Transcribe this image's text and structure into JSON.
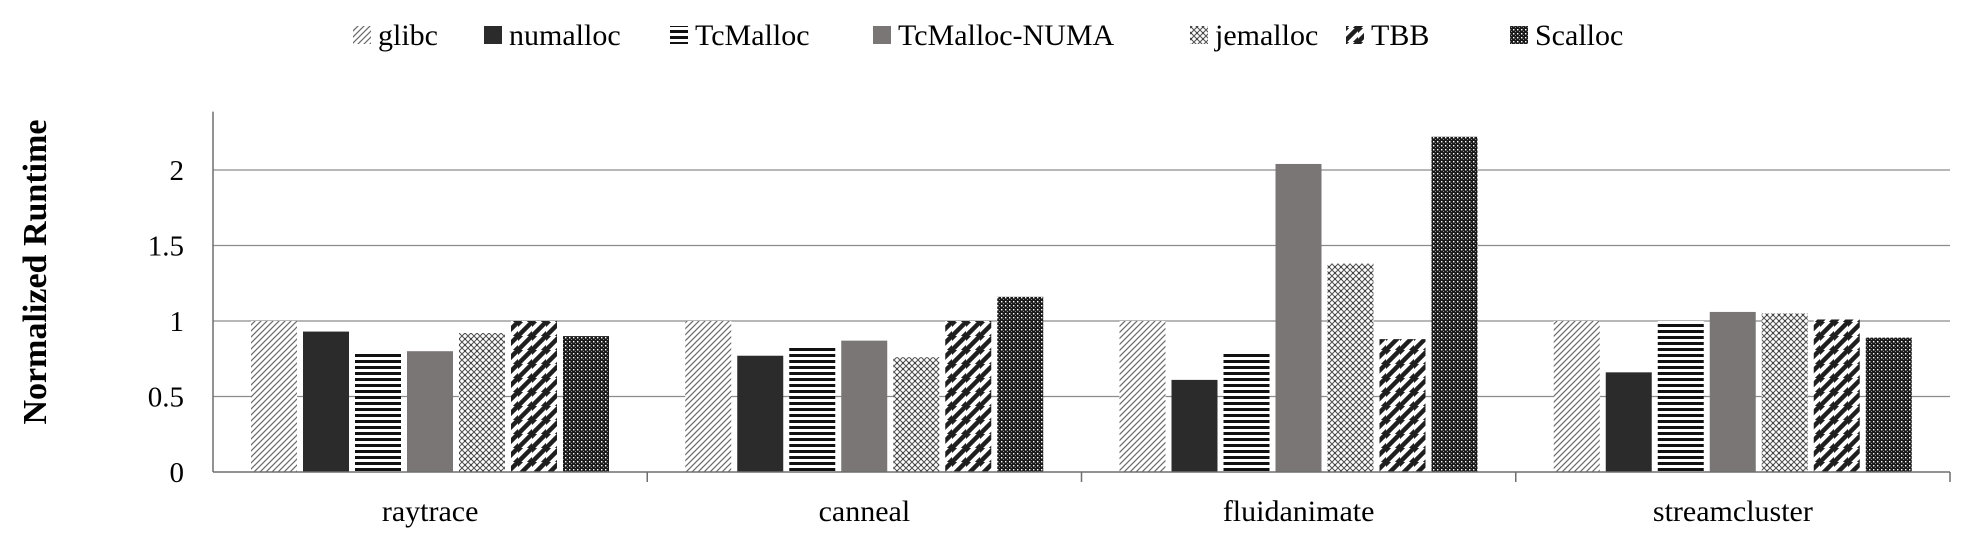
{
  "chart_data": {
    "type": "bar",
    "title": "",
    "xlabel": "",
    "ylabel": "Normalized Runtime",
    "categories": [
      "raytrace",
      "canneal",
      "fluidanimate",
      "streamcluster"
    ],
    "ylim": [
      0,
      2.4
    ],
    "yticks": [
      0,
      0.5,
      1,
      1.5,
      2
    ],
    "ytick_labels": [
      "0",
      "0.5",
      "1",
      "1.5",
      "2"
    ],
    "grid": "horizontal",
    "legend_position": "top",
    "series": [
      {
        "name": "glibc",
        "pattern": "diagonal-fine",
        "values": [
          1.0,
          1.0,
          1.0,
          1.0
        ]
      },
      {
        "name": "numalloc",
        "pattern": "solid-dark",
        "color": "#2b2b2b",
        "values": [
          0.93,
          0.77,
          0.61,
          0.66
        ]
      },
      {
        "name": "TcMalloc",
        "pattern": "horizontal-stripes",
        "values": [
          0.79,
          0.84,
          0.79,
          1.0
        ]
      },
      {
        "name": "TcMalloc-NUMA",
        "pattern": "solid-gray",
        "color": "#7a7675",
        "values": [
          0.8,
          0.87,
          2.04,
          1.06
        ]
      },
      {
        "name": "jemalloc",
        "pattern": "checker",
        "values": [
          0.92,
          0.76,
          1.38,
          1.05
        ]
      },
      {
        "name": "TBB",
        "pattern": "diagonal-bold",
        "values": [
          1.0,
          1.0,
          0.88,
          1.01
        ]
      },
      {
        "name": "Scalloc",
        "pattern": "dense-dots",
        "values": [
          0.9,
          1.16,
          2.22,
          0.89
        ]
      }
    ]
  }
}
